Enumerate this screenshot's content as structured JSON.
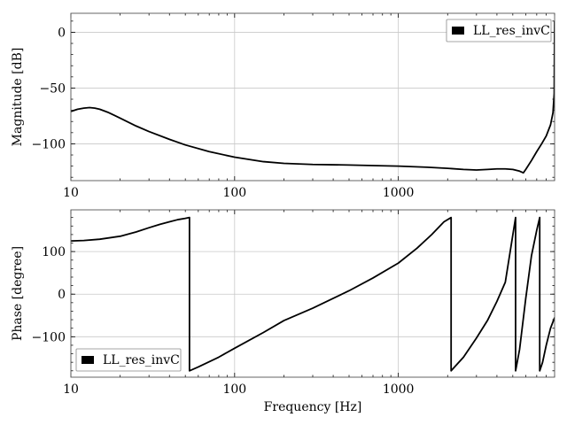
{
  "chart_data": [
    {
      "type": "line",
      "xscale": "log",
      "xlim": [
        10,
        9000
      ],
      "ylim": [
        -133,
        17
      ],
      "xlabel": "",
      "ylabel": "Magnitude [dB]",
      "xticks": [
        10,
        100,
        1000
      ],
      "xtick_labels": [
        "10",
        "100",
        "1000"
      ],
      "yticks": [
        0,
        -50,
        -100
      ],
      "ytick_labels": [
        "0",
        "−50",
        "−100"
      ],
      "grid": true,
      "legend": {
        "position": "top-right",
        "entries": [
          "LL_res_invC"
        ]
      },
      "series": [
        {
          "name": "LL_res_invC",
          "x": [
            10,
            11,
            12,
            13,
            14,
            15,
            17,
            20,
            25,
            30,
            40,
            50,
            70,
            100,
            150,
            200,
            300,
            500,
            700,
            1000,
            1500,
            2000,
            2500,
            3000,
            3500,
            4000,
            4500,
            5000,
            5500,
            5800,
            6000,
            6500,
            7000,
            7500,
            8000,
            8500,
            8800,
            8950,
            9000
          ],
          "y": [
            -71,
            -69,
            -68,
            -67.5,
            -68,
            -69,
            -72,
            -77,
            -84,
            -89,
            -96,
            -101,
            -107,
            -112,
            -116,
            -117.5,
            -118.5,
            -119,
            -119.5,
            -120,
            -121,
            -122,
            -123,
            -123.5,
            -123,
            -122.5,
            -122.5,
            -123,
            -124.5,
            -126,
            -123,
            -115,
            -107,
            -100,
            -93,
            -83,
            -72,
            -55,
            10
          ]
        }
      ]
    },
    {
      "type": "line",
      "xscale": "log",
      "xlim": [
        10,
        9000
      ],
      "ylim": [
        -195,
        198
      ],
      "xlabel": "Frequency [Hz]",
      "ylabel": "Phase [degree]",
      "xticks": [
        10,
        100,
        1000
      ],
      "xtick_labels": [
        "10",
        "100",
        "1000"
      ],
      "yticks": [
        100,
        0,
        -100
      ],
      "ytick_labels": [
        "100",
        "0",
        "−100"
      ],
      "grid": true,
      "legend": {
        "position": "bottom-left",
        "entries": [
          "LL_res_invC"
        ]
      },
      "series": [
        {
          "name": "LL_res_invC",
          "x": [
            10,
            12,
            15,
            20,
            25,
            30,
            35,
            40,
            45,
            50,
            53,
            53,
            60,
            80,
            100,
            150,
            200,
            300,
            500,
            700,
            1000,
            1300,
            1600,
            1900,
            2100,
            2100,
            2500,
            3000,
            3500,
            4000,
            4500,
            5200,
            5200,
            5500,
            6000,
            6500,
            7000,
            7300,
            7300,
            7600,
            8000,
            8500,
            9000
          ],
          "y": [
            125,
            126,
            129,
            136,
            146,
            156,
            164,
            170,
            175,
            178,
            180,
            -180,
            -171,
            -148,
            -127,
            -90,
            -62,
            -33,
            8,
            38,
            73,
            108,
            140,
            170,
            180,
            -180,
            -148,
            -103,
            -62,
            -17,
            28,
            180,
            -180,
            -130,
            -10,
            90,
            150,
            180,
            -180,
            -160,
            -120,
            -80,
            -55
          ]
        }
      ]
    }
  ]
}
